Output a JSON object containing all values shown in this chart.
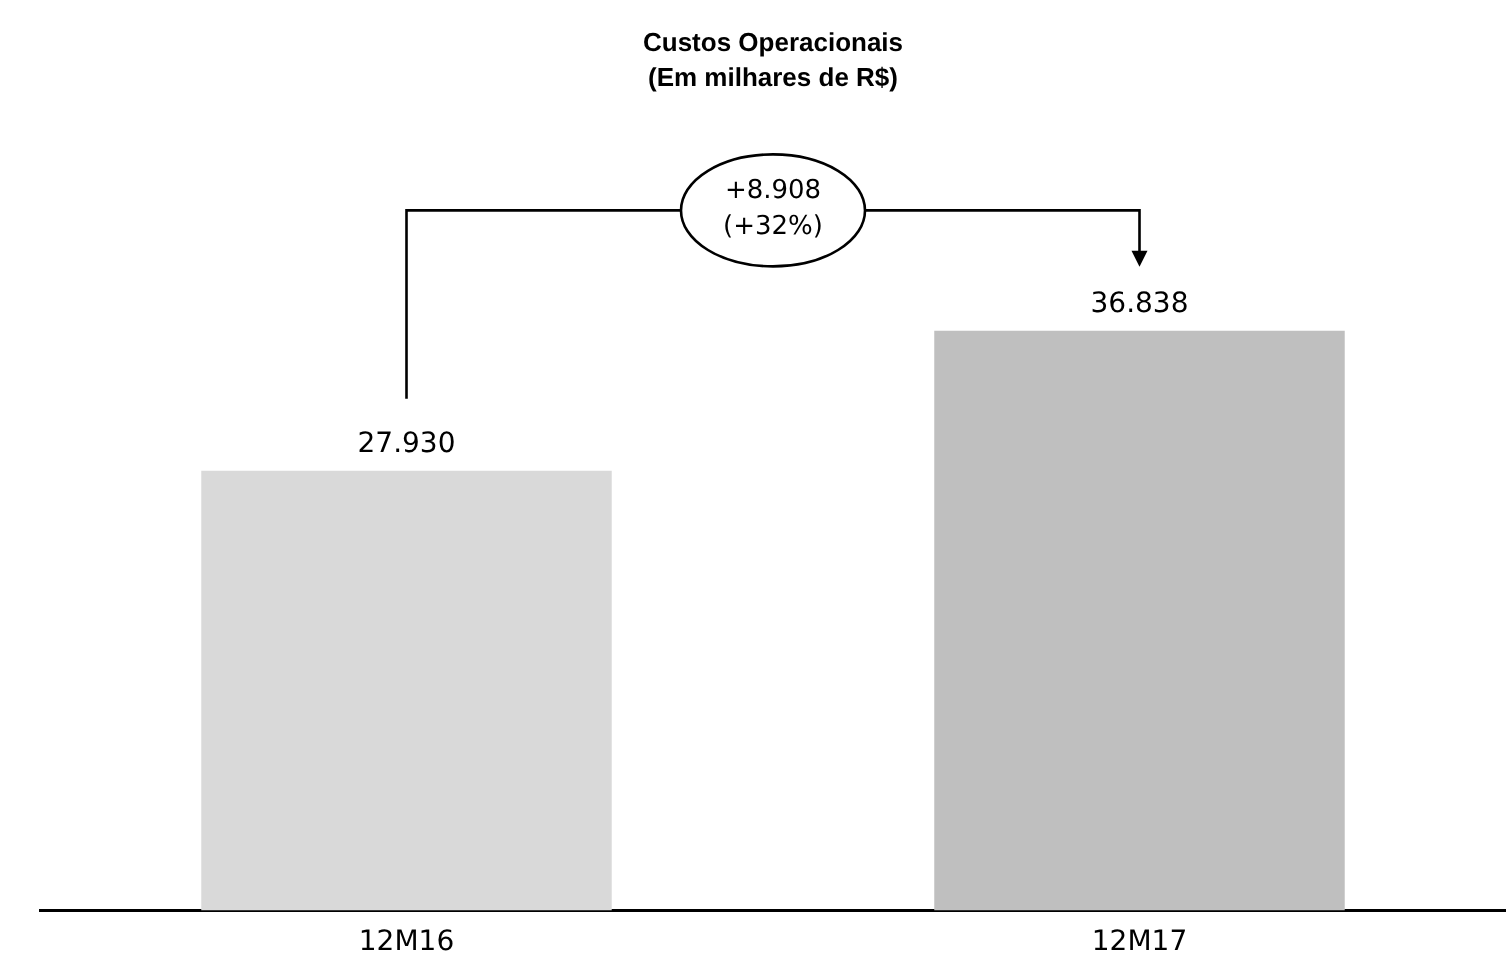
{
  "chart_data": {
    "type": "bar",
    "title": "Custos Operacionais",
    "subtitle": "(Em milhares de R$)",
    "categories": [
      "12M16",
      "12M17"
    ],
    "values": [
      27930,
      36838
    ],
    "colors": [
      "#d9d9d9",
      "#bfbfbf"
    ],
    "value_labels": [
      "27.930",
      "36.838"
    ],
    "annotations": [
      "+8.908\n(+32%)"
    ],
    "legend": false,
    "grid": false
  }
}
